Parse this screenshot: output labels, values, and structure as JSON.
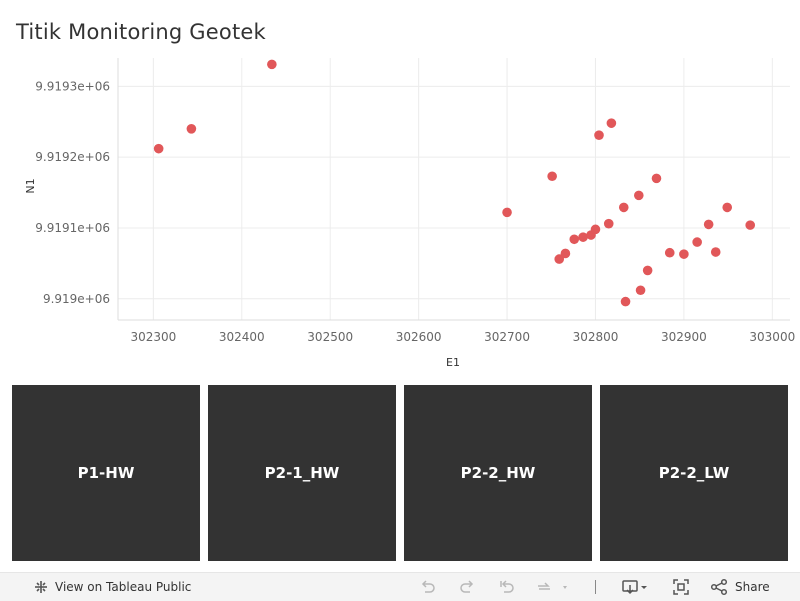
{
  "chart_data": {
    "type": "scatter",
    "title": "Titik Monitoring Geotek",
    "xlabel": "E1",
    "ylabel": "N1",
    "xlim": [
      302260,
      303020
    ],
    "ylim": [
      9918970,
      9919340
    ],
    "xticks": [
      302300,
      302400,
      302500,
      302600,
      302700,
      302800,
      302900,
      303000
    ],
    "xtick_labels": [
      "302300",
      "302400",
      "302500",
      "302600",
      "302700",
      "302800",
      "302900",
      "303000"
    ],
    "yticks": [
      9919000,
      9919100,
      9919200,
      9919300
    ],
    "ytick_labels": [
      "9.919e+06",
      "9.9191e+06",
      "9.9192e+06",
      "9.9193e+06"
    ],
    "grid": true,
    "marker_color": "#e15759",
    "x": [
      302306,
      302343,
      302434,
      302700,
      302751,
      302759,
      302766,
      302776,
      302786,
      302795,
      302800,
      302804,
      302815,
      302818,
      302832,
      302834,
      302849,
      302851,
      302859,
      302869,
      302884,
      302900,
      302915,
      302928,
      302936,
      302949,
      302975
    ],
    "y": [
      9919212,
      9919240,
      9919331,
      9919122,
      9919173,
      9919056,
      9919064,
      9919084,
      9919087,
      9919090,
      9919098,
      9919231,
      9919106,
      9919248,
      9919129,
      9918996,
      9919146,
      9919012,
      9919040,
      9919170,
      9919065,
      9919063,
      9919080,
      9919105,
      9919066,
      9919129,
      9919104
    ]
  },
  "tiles": [
    {
      "label": "P1-HW"
    },
    {
      "label": "P2-1_HW"
    },
    {
      "label": "P2-2_HW"
    },
    {
      "label": "P2-2_LW"
    }
  ],
  "footer": {
    "view_label": "View on Tableau Public",
    "share_label": "Share",
    "icons": {
      "tableau": "tableau-logo-icon",
      "undo": "undo-icon",
      "redo": "redo-icon",
      "revert": "revert-icon",
      "refresh": "refresh-icon",
      "download": "download-icon",
      "fullscreen": "fullscreen-icon",
      "share": "share-icon"
    }
  }
}
